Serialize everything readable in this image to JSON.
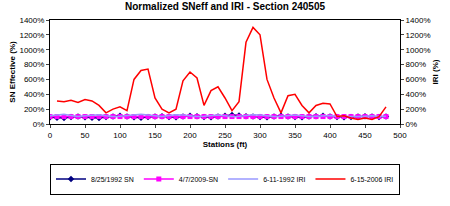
{
  "chart_data": {
    "type": "line",
    "title": "Normalized SNeff and IRI - Section 240505",
    "x_label": "Stations (ft)",
    "y_label": "SN Effective (%)",
    "y2_label": "IRI (%)",
    "x": [
      0,
      10,
      20,
      30,
      40,
      50,
      60,
      70,
      80,
      90,
      100,
      110,
      120,
      130,
      140,
      150,
      160,
      170,
      180,
      190,
      200,
      210,
      220,
      230,
      240,
      250,
      260,
      270,
      280,
      290,
      300,
      310,
      320,
      330,
      340,
      350,
      360,
      370,
      380,
      390,
      400,
      410,
      420,
      430,
      440,
      450,
      460,
      470,
      480
    ],
    "xlim": [
      0,
      500
    ],
    "xticks": [
      0,
      50,
      100,
      150,
      200,
      250,
      300,
      350,
      400,
      450,
      500
    ],
    "ylim": [
      0,
      1400
    ],
    "yticks": [
      {
        "value": 0,
        "label": "0%"
      },
      {
        "value": 200,
        "label": "200%"
      },
      {
        "value": 400,
        "label": "400%"
      },
      {
        "value": 600,
        "label": "600%"
      },
      {
        "value": 800,
        "label": "800%"
      },
      {
        "value": 1000,
        "label": "1000%"
      },
      {
        "value": 1200,
        "label": "1200%"
      },
      {
        "value": 1400,
        "label": "1400%"
      }
    ],
    "y2lim": [
      0,
      1400
    ],
    "y2ticks": [
      {
        "value": 0,
        "label": "0%"
      },
      {
        "value": 200,
        "label": "200%"
      },
      {
        "value": 400,
        "label": "400%"
      },
      {
        "value": 600,
        "label": "600%"
      },
      {
        "value": 800,
        "label": "800%"
      },
      {
        "value": 1000,
        "label": "1000%"
      },
      {
        "value": 1200,
        "label": "1200%"
      },
      {
        "value": 1400,
        "label": "1400%"
      }
    ],
    "legend": "bottom",
    "grid": false,
    "series": [
      {
        "name": "8/25/1992 SN",
        "color": "#000080",
        "marker": "diamond",
        "line_style": "solid",
        "values": [
          90,
          85,
          80,
          95,
          100,
          90,
          85,
          80,
          95,
          100,
          110,
          100,
          90,
          85,
          95,
          100,
          105,
          95,
          90,
          100,
          110,
          105,
          95,
          90,
          100,
          110,
          120,
          115,
          105,
          100,
          95,
          90,
          100,
          110,
          100,
          95,
          90,
          100,
          105,
          110,
          100,
          95,
          90,
          95,
          100,
          105,
          100,
          95,
          100
        ]
      },
      {
        "name": "4/7/2009-SN",
        "color": "#FF00FF",
        "marker": "square",
        "line_style": "solid",
        "values": [
          100,
          100,
          100,
          100,
          100,
          100,
          100,
          100,
          100,
          100,
          100,
          100,
          100,
          100,
          100,
          100,
          100,
          100,
          100,
          100,
          100,
          100,
          100,
          100,
          100,
          100,
          100,
          100,
          100,
          100,
          100,
          100,
          100,
          100,
          100,
          100,
          100,
          100,
          100,
          100,
          100,
          100,
          100,
          100,
          100,
          100,
          100,
          100,
          100
        ]
      },
      {
        "name": "6-11-1992 IRI",
        "color": "#9999FF",
        "marker": "none",
        "line_style": "solid",
        "axis": "y2",
        "values": [
          110,
          120,
          130,
          115,
          100,
          110,
          120,
          125,
          110,
          100,
          105,
          115,
          125,
          130,
          120,
          110,
          100,
          115,
          125,
          120,
          110,
          100,
          105,
          115,
          120,
          110,
          100,
          105,
          115,
          125,
          120,
          110,
          100,
          105,
          115,
          120,
          110,
          100,
          105,
          110,
          115,
          105,
          100,
          95,
          100,
          105,
          110,
          100,
          105
        ]
      },
      {
        "name": "6-15-2006 IRI",
        "color": "#FF0000",
        "marker": "none",
        "line_style": "solid",
        "axis": "y2",
        "values": [
          null,
          310,
          300,
          320,
          290,
          330,
          310,
          250,
          150,
          200,
          230,
          180,
          600,
          720,
          740,
          350,
          200,
          150,
          200,
          580,
          700,
          620,
          250,
          450,
          500,
          350,
          180,
          300,
          1100,
          1300,
          1200,
          600,
          350,
          150,
          380,
          400,
          250,
          150,
          250,
          280,
          270,
          100,
          110,
          80,
          60,
          80,
          60,
          100,
          230
        ]
      }
    ]
  }
}
